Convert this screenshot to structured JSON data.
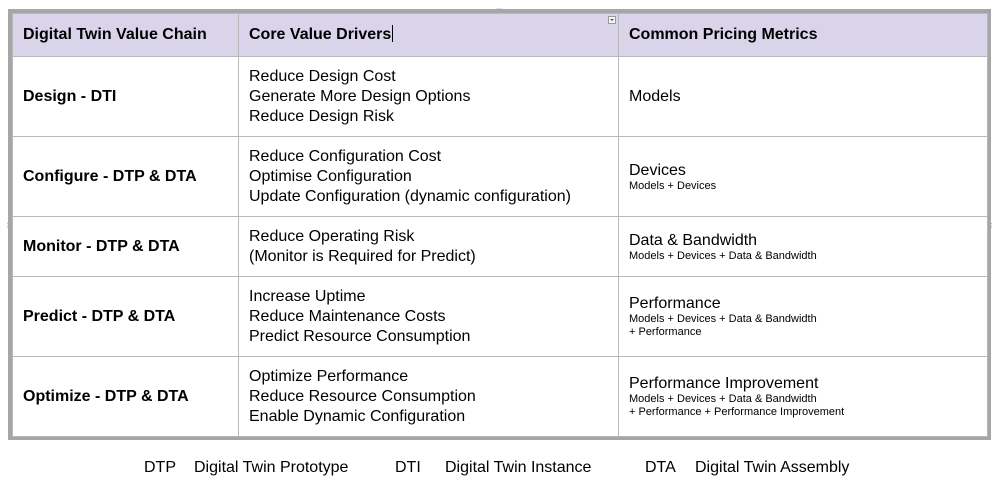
{
  "table": {
    "headers": [
      "Digital Twin Value Chain",
      "Core Value Drivers",
      "Common Pricing Metrics"
    ],
    "rows": [
      {
        "stage": "Design - DTI",
        "drivers": [
          "Reduce Design Cost",
          "Generate More Design Options",
          "Reduce Design Risk"
        ],
        "metric": "Models",
        "metric_detail": [
          "",
          ""
        ]
      },
      {
        "stage": "Configure - DTP & DTA",
        "drivers": [
          "Reduce Configuration Cost",
          "Optimise Configuration",
          "Update Configuration (dynamic configuration)"
        ],
        "metric": "Devices",
        "metric_detail": [
          "Models + Devices",
          ""
        ]
      },
      {
        "stage": "Monitor - DTP & DTA",
        "drivers": [
          "Reduce Operating Risk",
          "(Monitor is Required for Predict)",
          ""
        ],
        "metric": "Data & Bandwidth",
        "metric_detail": [
          "Models + Devices + Data & Bandwidth",
          ""
        ]
      },
      {
        "stage": "Predict - DTP & DTA",
        "drivers": [
          "Increase Uptime",
          "Reduce Maintenance Costs",
          "Predict Resource Consumption"
        ],
        "metric": "Performance",
        "metric_detail": [
          "Models + Devices + Data & Bandwidth",
          "+ Performance"
        ]
      },
      {
        "stage": "Optimize - DTP & DTA",
        "drivers": [
          "Optimize Performance",
          "Reduce Resource Consumption",
          "Enable Dynamic Configuration"
        ],
        "metric": "Performance Improvement",
        "metric_detail": [
          "Models + Devices + Data & Bandwidth",
          "+ Performance + Performance Improvement"
        ]
      }
    ]
  },
  "legend": {
    "dtp_abbr": "DTP",
    "dtp_text": "Digital Twin Prototype",
    "dti_abbr": "DTI",
    "dti_text": "Digital Twin Instance",
    "dta_abbr": "DTA",
    "dta_text": "Digital Twin Assembly"
  },
  "colors": {
    "header_fill": "#d9d4e9",
    "frame_border": "#a6a6a6",
    "cell_border": "#b8b8b8",
    "selection_handle": "#6b8cc7"
  }
}
